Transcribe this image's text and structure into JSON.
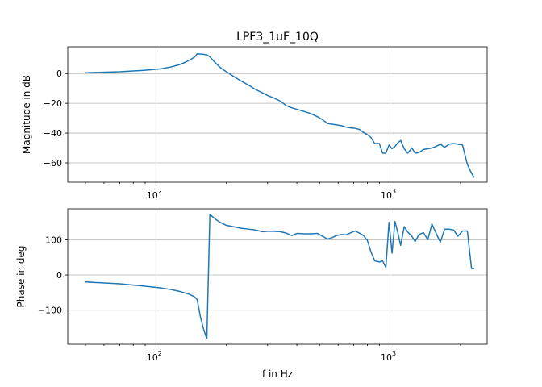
{
  "chart_data": [
    {
      "type": "line",
      "title": "LPF3_1uF_10Q",
      "xlabel": "",
      "ylabel": "Magnitude in dB",
      "xscale": "log",
      "xlim": [
        42,
        2600
      ],
      "ylim": [
        -73,
        18
      ],
      "grid": true,
      "color": "#1f77b4",
      "xticks": [
        {
          "base": "10",
          "exp": "2",
          "value": 100
        },
        {
          "base": "10",
          "exp": "3",
          "value": 1000
        }
      ],
      "yticks": [
        {
          "label": "0",
          "value": 0
        },
        {
          "label": "−20",
          "value": -20
        },
        {
          "label": "−40",
          "value": -40
        },
        {
          "label": "−60",
          "value": -60
        }
      ],
      "x": [
        50,
        70,
        90,
        105,
        115,
        125,
        133,
        140,
        146,
        150,
        158,
        165,
        170,
        180,
        190,
        200,
        215,
        230,
        250,
        265,
        285,
        300,
        320,
        340,
        360,
        380,
        400,
        430,
        460,
        490,
        515,
        540,
        565,
        590,
        620,
        650,
        680,
        710,
        740,
        770,
        800,
        830,
        860,
        900,
        930,
        960,
        990,
        1020,
        1050,
        1080,
        1110,
        1150,
        1190,
        1240,
        1280,
        1330,
        1390,
        1450,
        1510,
        1570,
        1640,
        1710,
        1790,
        1870,
        1950,
        2040,
        2140,
        2230,
        2280
      ],
      "series": [
        {
          "name": "Magnitude",
          "values": [
            0.5,
            1.2,
            2.2,
            3.2,
            4.3,
            5.8,
            7.5,
            9.2,
            11.0,
            13.2,
            13.0,
            12.5,
            11.2,
            7.0,
            3.5,
            1.2,
            -2.0,
            -4.8,
            -8.0,
            -10.5,
            -13.0,
            -14.8,
            -16.5,
            -18.5,
            -21.5,
            -23.0,
            -24.0,
            -25.5,
            -27.0,
            -29.0,
            -31.0,
            -33.5,
            -34.0,
            -34.5,
            -35.0,
            -36.0,
            -36.5,
            -36.8,
            -37.5,
            -39.5,
            -41.0,
            -43.0,
            -47.0,
            -47.0,
            -53.5,
            -53.5,
            -48.0,
            -50.5,
            -49.0,
            -46.5,
            -45.0,
            -50.5,
            -53.5,
            -50.0,
            -53.5,
            -53.0,
            -51.0,
            -50.5,
            -50.0,
            -49.0,
            -47.5,
            -49.5,
            -47.5,
            -47.0,
            -47.5,
            -48.0,
            -61.0,
            -67.0,
            -69.5
          ]
        }
      ]
    },
    {
      "type": "line",
      "title": "",
      "xlabel": "f in Hz",
      "ylabel": "Phase in deg",
      "xscale": "log",
      "xlim": [
        42,
        2600
      ],
      "ylim": [
        -197,
        188
      ],
      "grid": true,
      "color": "#1f77b4",
      "xticks": [
        {
          "base": "10",
          "exp": "2",
          "value": 100
        },
        {
          "base": "10",
          "exp": "3",
          "value": 1000
        }
      ],
      "yticks": [
        {
          "label": "100",
          "value": 100
        },
        {
          "label": "0",
          "value": 0
        },
        {
          "label": "−100",
          "value": -100
        }
      ],
      "x": [
        50,
        70,
        90,
        105,
        115,
        125,
        133,
        140,
        146,
        150,
        155,
        160,
        163,
        165,
        170,
        180,
        190,
        200,
        215,
        230,
        250,
        265,
        285,
        300,
        320,
        340,
        360,
        380,
        400,
        430,
        460,
        490,
        515,
        540,
        565,
        590,
        620,
        650,
        680,
        710,
        740,
        770,
        800,
        830,
        860,
        900,
        930,
        960,
        990,
        1020,
        1050,
        1080,
        1110,
        1150,
        1190,
        1240,
        1280,
        1330,
        1390,
        1450,
        1510,
        1570,
        1640,
        1710,
        1790,
        1870,
        1950,
        2040,
        2140,
        2230,
        2280
      ],
      "series": [
        {
          "name": "Phase",
          "values": [
            -20,
            -25,
            -32,
            -37,
            -41,
            -46,
            -51,
            -56,
            -62,
            -70,
            -120,
            -155,
            -172,
            -180,
            172,
            158,
            148,
            141,
            137,
            133,
            130,
            128,
            123,
            124,
            124,
            123,
            119,
            112,
            118,
            117,
            117,
            118,
            110,
            102,
            106,
            112,
            115,
            114,
            120,
            125,
            119,
            112,
            98,
            65,
            40,
            37,
            40,
            21,
            150,
            62,
            152,
            120,
            84,
            137,
            122,
            110,
            95,
            115,
            120,
            100,
            145,
            120,
            93,
            130,
            130,
            128,
            110,
            125,
            125,
            18,
            18
          ]
        }
      ]
    }
  ]
}
